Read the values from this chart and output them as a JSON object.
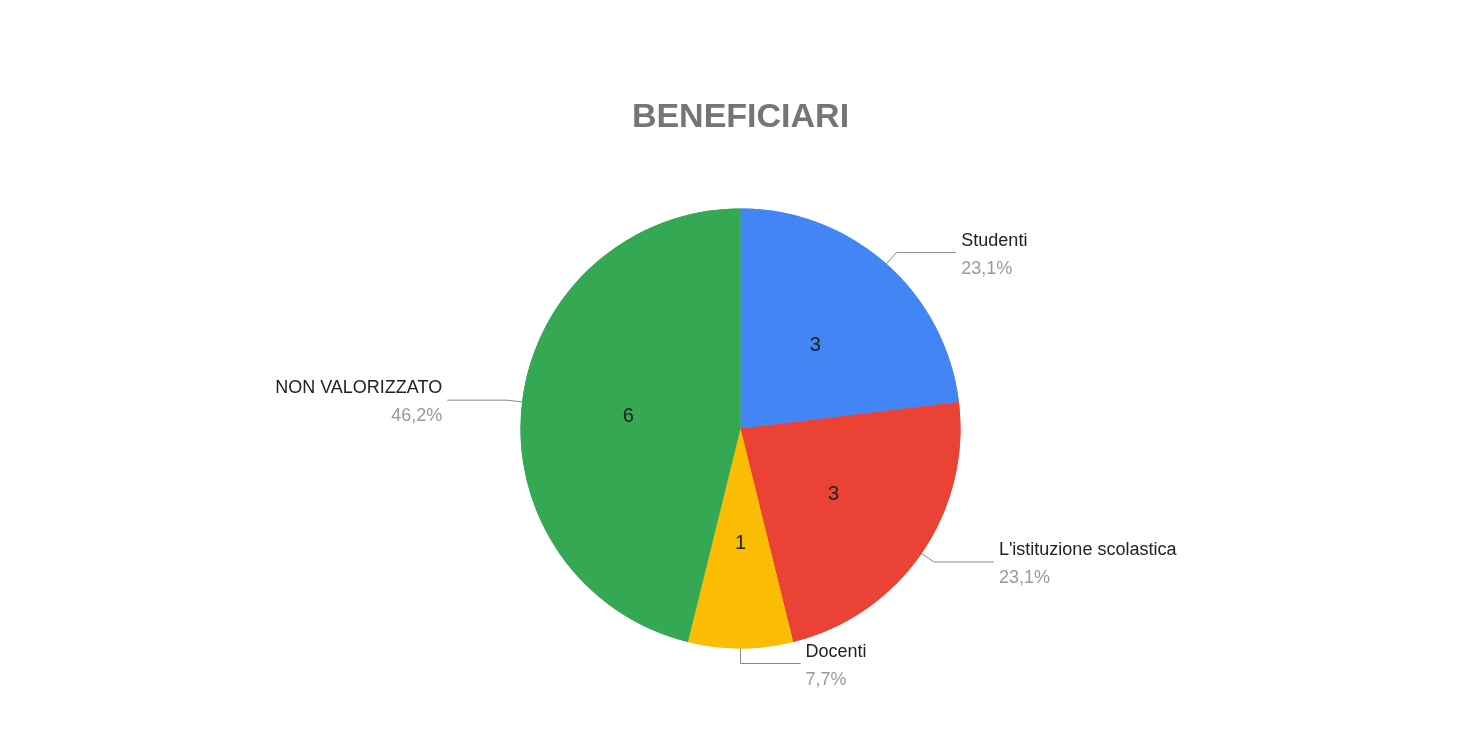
{
  "chart_data": {
    "type": "pie",
    "title": "BENEFICIARI",
    "categories": [
      "Studenti",
      "L'istituzione scolastica",
      "Docenti",
      "NON VALORIZZATO"
    ],
    "values": [
      3,
      3,
      1,
      6
    ],
    "colors": [
      "#4285f4",
      "#ea4335",
      "#fbbc04",
      "#34a853"
    ],
    "annotations": [
      "23,1%",
      "23,1%",
      "7,7%",
      "46,2%"
    ],
    "data_labels": true,
    "legend": false
  }
}
